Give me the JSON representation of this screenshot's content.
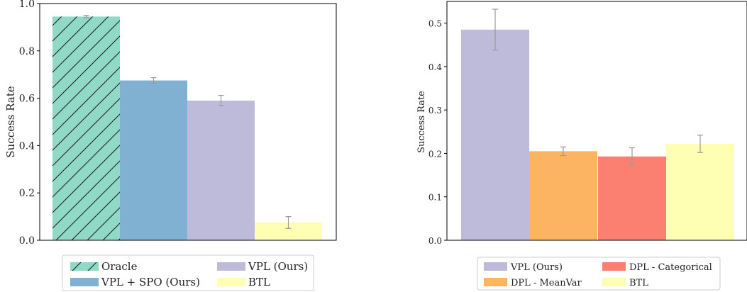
{
  "chart_data": [
    {
      "type": "bar",
      "categories": [
        "Oracle",
        "VPL + SPO (Ours)",
        "VPL (Ours)",
        "BTL"
      ],
      "values": [
        0.945,
        0.675,
        0.59,
        0.075
      ],
      "errors": [
        0.005,
        0.012,
        0.022,
        0.025
      ],
      "colors": [
        "#8fd9c6",
        "#80b1d3",
        "#bebada",
        "#ffffb3"
      ],
      "hatch": [
        true,
        false,
        false,
        false
      ],
      "xlabel": "",
      "ylabel": "Success Rate",
      "ylim": [
        0,
        1.0
      ],
      "yticks": [
        "0.0",
        "0.2",
        "0.4",
        "0.6",
        "0.8",
        "1.0"
      ],
      "legend": {
        "placement": "below",
        "entries": [
          "Oracle",
          "VPL + SPO (Ours)",
          "VPL (Ours)",
          "BTL"
        ]
      }
    },
    {
      "type": "bar",
      "categories": [
        "VPL (Ours)",
        "DPL - MeanVar",
        "DPL - Categorical",
        "BTL"
      ],
      "values": [
        0.485,
        0.205,
        0.193,
        0.222
      ],
      "errors": [
        0.047,
        0.01,
        0.02,
        0.02
      ],
      "colors": [
        "#bebada",
        "#fdb462",
        "#fb8072",
        "#ffffb3"
      ],
      "hatch": [
        false,
        false,
        false,
        false
      ],
      "xlabel": "",
      "ylabel": "Success Rate",
      "ylim": [
        0,
        0.55
      ],
      "yticks": [
        "0.0",
        "0.1",
        "0.2",
        "0.3",
        "0.4",
        "0.5"
      ],
      "legend": {
        "placement": "below",
        "entries": [
          "VPL (Ours)",
          "DPL - MeanVar",
          "DPL - Categorical",
          "BTL"
        ]
      }
    }
  ]
}
